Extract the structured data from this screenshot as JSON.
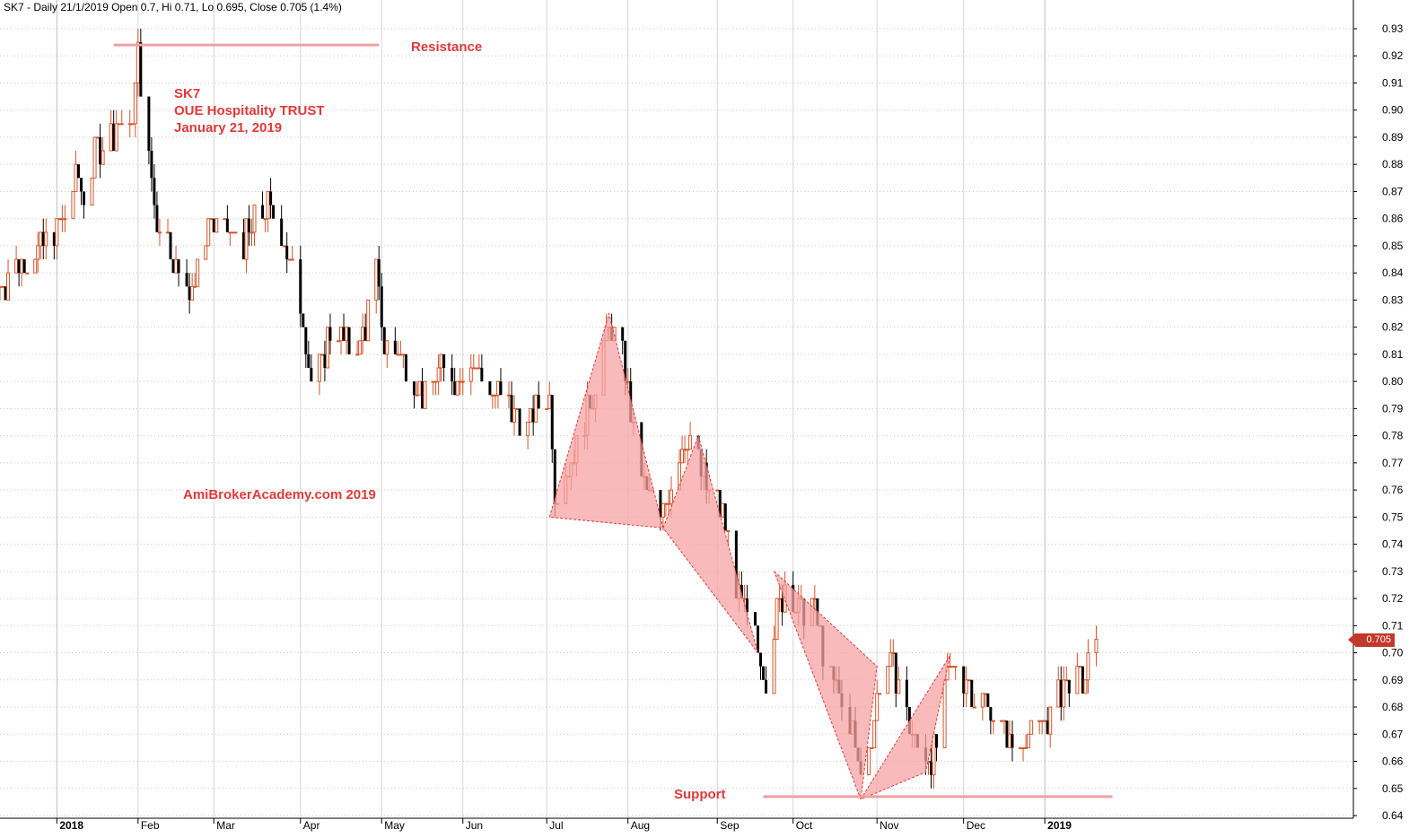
{
  "header": {
    "text": "SK7 - Daily 21/1/2019 Open 0.7, Hi 0.71, Lo 0.695, Close 0.705 (1.4%)"
  },
  "annotations": {
    "resistance": "Resistance",
    "support": "Support",
    "ticker": "SK7",
    "name": "OUE Hospitality TRUST",
    "date": "January 21, 2019",
    "watermark": "AmiBrokerAcademy.com  2019"
  },
  "last_price_label": "0.705",
  "colors": {
    "up_candle": "#d4552a",
    "down_candle": "#000000",
    "pattern_fill": "#f5a3a3",
    "pattern_stroke": "#e03a3a",
    "sr_line": "#f0a0a0",
    "label_red": "#e03a3a",
    "grid": "#c8c8c8"
  },
  "chart_data": {
    "type": "candlestick",
    "y_axis_side": "right",
    "ylim": [
      0.64,
      0.93
    ],
    "y_ticks": [
      "0.64",
      "0.65",
      "0.66",
      "0.67",
      "0.68",
      "0.69",
      "0.70",
      "0.71",
      "0.72",
      "0.73",
      "0.74",
      "0.75",
      "0.76",
      "0.77",
      "0.78",
      "0.79",
      "0.80",
      "0.81",
      "0.82",
      "0.83",
      "0.84",
      "0.85",
      "0.86",
      "0.87",
      "0.88",
      "0.89",
      "0.90",
      "0.91",
      "0.92",
      "0.93"
    ],
    "x_ticks": [
      {
        "label": "2018",
        "date": "2018-01-02",
        "bold": true
      },
      {
        "label": "Feb",
        "date": "2018-02-01"
      },
      {
        "label": "Mar",
        "date": "2018-03-01"
      },
      {
        "label": "Apr",
        "date": "2018-04-02"
      },
      {
        "label": "May",
        "date": "2018-05-02"
      },
      {
        "label": "Jun",
        "date": "2018-06-01"
      },
      {
        "label": "Jul",
        "date": "2018-07-02"
      },
      {
        "label": "Aug",
        "date": "2018-08-01"
      },
      {
        "label": "Sep",
        "date": "2018-09-03"
      },
      {
        "label": "Oct",
        "date": "2018-10-01"
      },
      {
        "label": "Nov",
        "date": "2018-11-01"
      },
      {
        "label": "Dec",
        "date": "2018-12-03"
      },
      {
        "label": "2019",
        "date": "2019-01-02",
        "bold": true
      }
    ],
    "x_range": [
      "2017-12-12",
      "2019-04-26"
    ],
    "price_path": [
      [
        "2017-12-12",
        0.835
      ],
      [
        "2017-12-20",
        0.845
      ],
      [
        "2017-12-28",
        0.85
      ],
      [
        "2018-01-04",
        0.86
      ],
      [
        "2018-01-09",
        0.875
      ],
      [
        "2018-01-12",
        0.87
      ],
      [
        "2018-01-17",
        0.885
      ],
      [
        "2018-01-22",
        0.89
      ],
      [
        "2018-01-25",
        0.895
      ],
      [
        "2018-01-29",
        0.89
      ],
      [
        "2018-02-01",
        0.92
      ],
      [
        "2018-02-05",
        0.88
      ],
      [
        "2018-02-08",
        0.86
      ],
      [
        "2018-02-12",
        0.855
      ],
      [
        "2018-02-15",
        0.84
      ],
      [
        "2018-02-22",
        0.835
      ],
      [
        "2018-02-27",
        0.86
      ],
      [
        "2018-03-05",
        0.855
      ],
      [
        "2018-03-12",
        0.852
      ],
      [
        "2018-03-16",
        0.858
      ],
      [
        "2018-03-21",
        0.865
      ],
      [
        "2018-03-26",
        0.855
      ],
      [
        "2018-03-30",
        0.84
      ],
      [
        "2018-04-03",
        0.825
      ],
      [
        "2018-04-06",
        0.8
      ],
      [
        "2018-04-10",
        0.805
      ],
      [
        "2018-04-13",
        0.82
      ],
      [
        "2018-04-18",
        0.815
      ],
      [
        "2018-04-24",
        0.812
      ],
      [
        "2018-04-30",
        0.84
      ],
      [
        "2018-05-03",
        0.812
      ],
      [
        "2018-05-08",
        0.81
      ],
      [
        "2018-05-14",
        0.8
      ],
      [
        "2018-05-18",
        0.795
      ],
      [
        "2018-05-23",
        0.805
      ],
      [
        "2018-05-29",
        0.8
      ],
      [
        "2018-06-04",
        0.81
      ],
      [
        "2018-06-08",
        0.8
      ],
      [
        "2018-06-13",
        0.795
      ],
      [
        "2018-06-19",
        0.79
      ],
      [
        "2018-06-25",
        0.785
      ],
      [
        "2018-06-29",
        0.79
      ],
      [
        "2018-07-03",
        0.795
      ],
      [
        "2018-07-05",
        0.76
      ],
      [
        "2018-07-10",
        0.77
      ],
      [
        "2018-07-16",
        0.785
      ],
      [
        "2018-07-20",
        0.8
      ],
      [
        "2018-07-25",
        0.82
      ],
      [
        "2018-07-30",
        0.81
      ],
      [
        "2018-08-03",
        0.78
      ],
      [
        "2018-08-08",
        0.76
      ],
      [
        "2018-08-13",
        0.75
      ],
      [
        "2018-08-16",
        0.76
      ],
      [
        "2018-08-21",
        0.775
      ],
      [
        "2018-08-24",
        0.78
      ],
      [
        "2018-08-28",
        0.765
      ],
      [
        "2018-09-03",
        0.755
      ],
      [
        "2018-09-07",
        0.745
      ],
      [
        "2018-09-11",
        0.72
      ],
      [
        "2018-09-14",
        0.71
      ],
      [
        "2018-09-19",
        0.7
      ],
      [
        "2018-09-21",
        0.69
      ],
      [
        "2018-09-25",
        0.715
      ],
      [
        "2018-09-28",
        0.725
      ],
      [
        "2018-10-03",
        0.715
      ],
      [
        "2018-10-08",
        0.72
      ],
      [
        "2018-10-11",
        0.705
      ],
      [
        "2018-10-15",
        0.69
      ],
      [
        "2018-10-19",
        0.68
      ],
      [
        "2018-10-23",
        0.67
      ],
      [
        "2018-10-26",
        0.655
      ],
      [
        "2018-10-29",
        0.665
      ],
      [
        "2018-11-02",
        0.69
      ],
      [
        "2018-11-06",
        0.695
      ],
      [
        "2018-11-09",
        0.69
      ],
      [
        "2018-11-13",
        0.675
      ],
      [
        "2018-11-16",
        0.665
      ],
      [
        "2018-11-20",
        0.662
      ],
      [
        "2018-11-23",
        0.665
      ],
      [
        "2018-11-27",
        0.69
      ],
      [
        "2018-11-30",
        0.695
      ],
      [
        "2018-12-04",
        0.69
      ],
      [
        "2018-12-07",
        0.685
      ],
      [
        "2018-12-12",
        0.68
      ],
      [
        "2018-12-17",
        0.672
      ],
      [
        "2018-12-20",
        0.665
      ],
      [
        "2018-12-24",
        0.668
      ],
      [
        "2018-12-28",
        0.67
      ],
      [
        "2019-01-03",
        0.675
      ],
      [
        "2019-01-07",
        0.685
      ],
      [
        "2019-01-11",
        0.69
      ],
      [
        "2019-01-16",
        0.688
      ],
      [
        "2019-01-21",
        0.705
      ]
    ],
    "last_bar": {
      "date": "2019-01-21",
      "open": 0.7,
      "high": 0.71,
      "low": 0.695,
      "close": 0.705
    },
    "resistance_line": {
      "price": 0.924,
      "from": "2018-01-23",
      "to": "2018-05-01",
      "label": "Resistance"
    },
    "support_line": {
      "price": 0.647,
      "from": "2018-09-20",
      "to": "2019-01-27",
      "label": "Support"
    },
    "harmonic_patterns": [
      {
        "points": [
          [
            "2018-07-03",
            0.75
          ],
          [
            "2018-07-25",
            0.825
          ],
          [
            "2018-08-14",
            0.746
          ],
          [
            "2018-08-27",
            0.78
          ],
          [
            "2018-09-18",
            0.7
          ]
        ]
      },
      {
        "points": [
          [
            "2018-09-24",
            0.73
          ],
          [
            "2018-11-01",
            0.695
          ],
          [
            "2018-10-26",
            0.646
          ],
          [
            "2018-11-28",
            0.699
          ],
          [
            "2018-11-19",
            0.656
          ]
        ]
      }
    ]
  }
}
